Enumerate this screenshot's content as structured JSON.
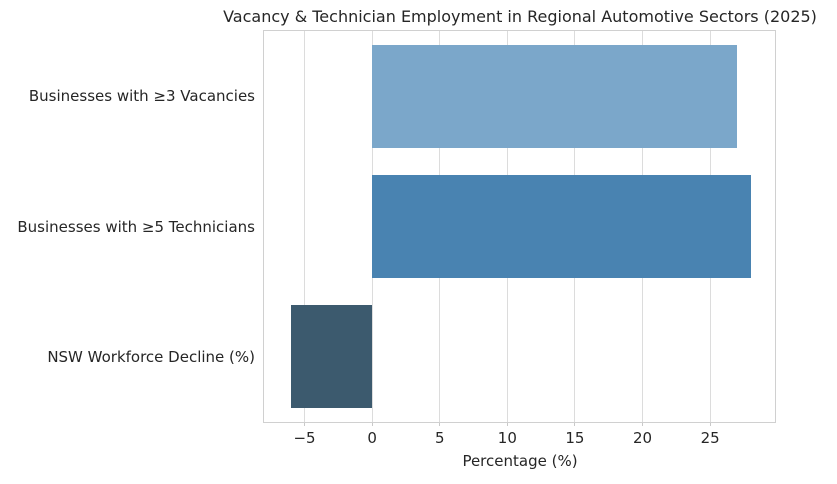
{
  "figure": {
    "background": "#ffffff",
    "text_color": "#262626"
  },
  "chart_data": {
    "type": "bar",
    "orientation": "horizontal",
    "title": "Vacancy & Technician Employment in Regional Automotive Sectors (2025)",
    "xlabel": "Percentage (%)",
    "ylabel": "",
    "categories": [
      "Businesses with ≥3 Vacancies",
      "Businesses with ≥5 Technicians",
      "NSW Workforce Decline (%)"
    ],
    "values": [
      27,
      28,
      -6
    ],
    "bar_colors": [
      "#7BA7CA",
      "#4983B1",
      "#3C5A6E"
    ],
    "xlim": [
      -8,
      29.8
    ],
    "xticks": [
      -5,
      0,
      5,
      10,
      15,
      20,
      25
    ],
    "grid": "vertical",
    "grid_color": "#dcdcdc",
    "spine_color": "#d0d0d0",
    "tick_color": "#c9c9c9",
    "bar_height_frac": 0.79,
    "legend": "none"
  }
}
